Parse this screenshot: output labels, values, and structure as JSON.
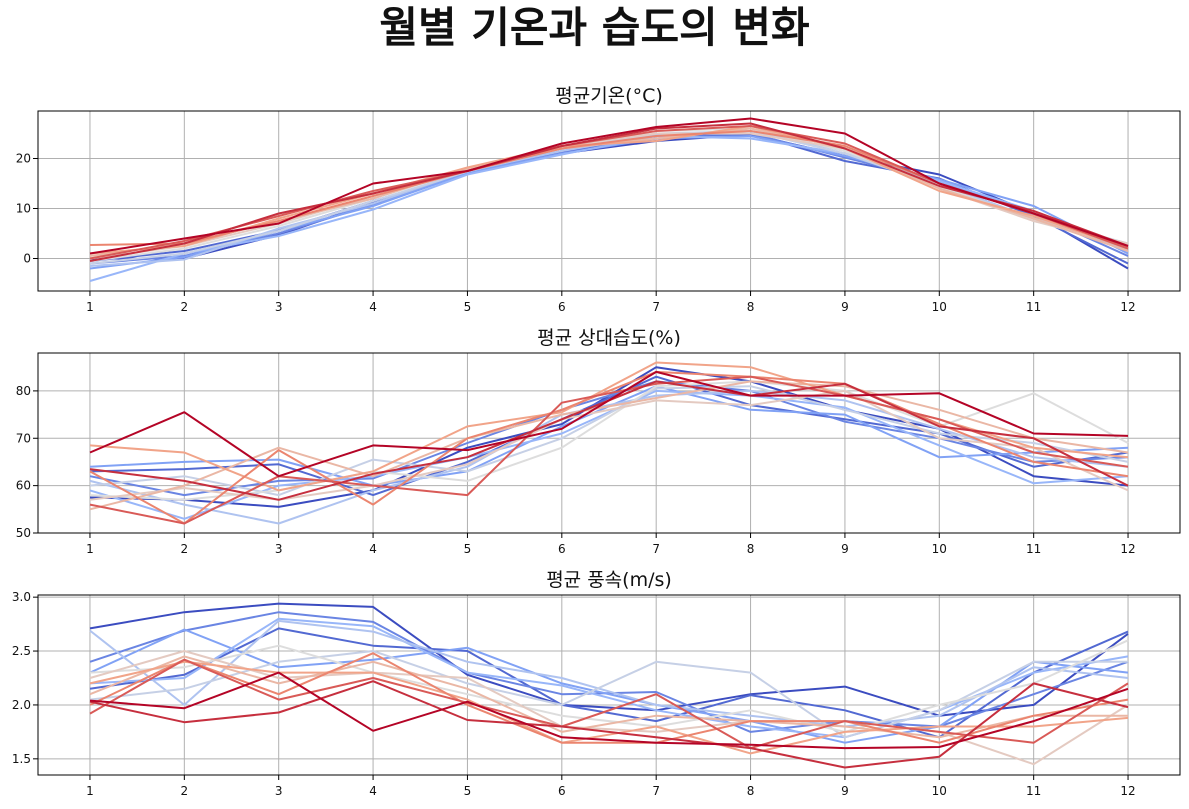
{
  "title": "월별 기온과 습도의 변화",
  "chart_data": [
    {
      "type": "line",
      "title": "평균기온(°C)",
      "x": [
        1,
        2,
        3,
        4,
        5,
        6,
        7,
        8,
        9,
        10,
        11,
        12
      ],
      "xticks": [
        "1",
        "2",
        "3",
        "4",
        "5",
        "6",
        "7",
        "8",
        "9",
        "10",
        "11",
        "12"
      ],
      "ylim": [
        -6.5,
        29.5
      ],
      "yticks": [
        0,
        10,
        20
      ],
      "grid": true,
      "colormap": "coolwarm",
      "series": [
        {
          "values": [
            0.0,
            0.0,
            4.7,
            11.2,
            17.0,
            21.0,
            23.5,
            24.8,
            20.5,
            16.8,
            9.0,
            -2.0
          ]
        },
        {
          "values": [
            -0.5,
            1.5,
            5.6,
            11.5,
            17.2,
            21.3,
            24.0,
            25.0,
            19.5,
            16.0,
            8.5,
            -1.0
          ]
        },
        {
          "values": [
            -1.0,
            0.5,
            5.0,
            10.8,
            17.3,
            21.5,
            24.5,
            25.0,
            20.2,
            15.5,
            9.0,
            0.5
          ]
        },
        {
          "values": [
            -2.0,
            0.3,
            5.5,
            10.5,
            17.1,
            21.0,
            24.0,
            24.5,
            20.5,
            15.8,
            10.5,
            1.0
          ]
        },
        {
          "values": [
            -4.5,
            1.0,
            4.5,
            9.8,
            16.8,
            20.8,
            24.5,
            24.0,
            21.0,
            15.5,
            9.5,
            1.5
          ]
        },
        {
          "values": [
            -1.5,
            -0.2,
            6.0,
            11.0,
            17.5,
            21.5,
            24.8,
            25.5,
            21.5,
            15.0,
            8.0,
            2.0
          ]
        },
        {
          "values": [
            -1.0,
            1.0,
            5.5,
            11.5,
            17.4,
            22.0,
            25.0,
            25.5,
            21.0,
            14.5,
            8.0,
            3.0
          ]
        },
        {
          "values": [
            -0.5,
            2.0,
            6.5,
            12.0,
            17.8,
            22.0,
            25.5,
            26.0,
            21.5,
            14.5,
            7.5,
            2.5
          ]
        },
        {
          "values": [
            0.0,
            2.5,
            7.0,
            12.5,
            17.9,
            22.5,
            25.0,
            25.0,
            22.0,
            14.0,
            7.5,
            3.0
          ]
        },
        {
          "values": [
            0.5,
            3.0,
            7.5,
            12.0,
            18.0,
            22.0,
            24.0,
            26.0,
            22.5,
            14.0,
            8.0,
            1.5
          ]
        },
        {
          "values": [
            1.0,
            2.5,
            8.0,
            13.0,
            18.2,
            22.5,
            23.5,
            26.5,
            22.0,
            13.5,
            8.5,
            2.0
          ]
        },
        {
          "values": [
            2.7,
            3.0,
            7.5,
            12.5,
            17.5,
            22.0,
            24.5,
            25.5,
            22.5,
            15.0,
            9.0,
            2.0
          ]
        },
        {
          "values": [
            0.0,
            3.5,
            8.5,
            13.5,
            17.5,
            22.5,
            25.5,
            26.5,
            23.0,
            15.0,
            9.0,
            2.0
          ]
        },
        {
          "values": [
            -0.5,
            3.0,
            9.0,
            13.0,
            17.5,
            22.5,
            26.0,
            27.0,
            22.0,
            14.5,
            9.5,
            2.5
          ]
        },
        {
          "values": [
            1.0,
            4.0,
            7.0,
            15.0,
            17.5,
            23.0,
            26.3,
            28.0,
            25.0,
            15.0,
            9.0,
            2.5
          ]
        }
      ]
    },
    {
      "type": "line",
      "title": "평균 상대습도(%)",
      "x": [
        1,
        2,
        3,
        4,
        5,
        6,
        7,
        8,
        9,
        10,
        11,
        12
      ],
      "xticks": [
        "1",
        "2",
        "3",
        "4",
        "5",
        "6",
        "7",
        "8",
        "9",
        "10",
        "11",
        "12"
      ],
      "ylim": [
        50,
        88
      ],
      "yticks": [
        50,
        60,
        70,
        80
      ],
      "grid": true,
      "colormap": "coolwarm",
      "series": [
        {
          "values": [
            57.5,
            57.0,
            55.5,
            59.0,
            68.0,
            73.0,
            85.0,
            82.0,
            76.0,
            72.0,
            62.0,
            60.0
          ]
        },
        {
          "values": [
            63.0,
            63.5,
            64.5,
            58.0,
            65.0,
            74.0,
            83.0,
            77.0,
            74.0,
            71.0,
            64.0,
            67.0
          ]
        },
        {
          "values": [
            62.0,
            58.0,
            61.0,
            61.5,
            69.0,
            76.0,
            82.0,
            80.0,
            73.5,
            70.0,
            65.0,
            66.0
          ]
        },
        {
          "values": [
            64.0,
            65.0,
            65.5,
            60.0,
            63.0,
            72.5,
            81.0,
            76.0,
            75.0,
            66.0,
            67.0,
            68.0
          ]
        },
        {
          "values": [
            59.0,
            53.0,
            60.0,
            62.0,
            66.0,
            71.0,
            80.0,
            79.0,
            76.5,
            68.5,
            60.5,
            62.0
          ]
        },
        {
          "values": [
            61.0,
            56.0,
            52.0,
            59.0,
            64.0,
            75.0,
            79.0,
            80.0,
            78.0,
            72.0,
            66.0,
            64.0
          ]
        },
        {
          "values": [
            60.0,
            62.0,
            58.0,
            65.5,
            63.0,
            70.0,
            80.5,
            81.0,
            76.0,
            71.0,
            69.0,
            65.0
          ]
        },
        {
          "values": [
            58.0,
            57.0,
            59.0,
            63.0,
            61.0,
            68.0,
            81.0,
            82.0,
            80.0,
            72.5,
            79.5,
            69.0
          ]
        },
        {
          "values": [
            57.0,
            59.5,
            57.0,
            60.0,
            64.5,
            74.0,
            78.0,
            77.0,
            80.0,
            70.0,
            68.0,
            59.0
          ]
        },
        {
          "values": [
            55.0,
            60.0,
            68.0,
            62.0,
            70.0,
            75.0,
            78.5,
            82.0,
            81.0,
            76.0,
            70.0,
            67.0
          ]
        },
        {
          "values": [
            68.5,
            67.0,
            59.0,
            63.0,
            72.5,
            75.5,
            86.0,
            85.0,
            79.0,
            74.0,
            68.0,
            66.0
          ]
        },
        {
          "values": [
            63.0,
            52.0,
            67.5,
            56.0,
            70.0,
            76.0,
            84.0,
            83.0,
            81.5,
            73.0,
            65.0,
            62.0
          ]
        },
        {
          "values": [
            56.0,
            52.0,
            62.0,
            60.0,
            58.0,
            77.5,
            81.5,
            83.0,
            79.0,
            74.0,
            67.0,
            64.0
          ]
        },
        {
          "values": [
            63.5,
            61.0,
            57.0,
            62.5,
            66.0,
            74.0,
            82.0,
            79.0,
            81.5,
            72.5,
            70.0,
            60.0
          ]
        },
        {
          "values": [
            67.0,
            75.5,
            62.0,
            68.5,
            67.5,
            72.0,
            84.0,
            79.0,
            79.0,
            79.5,
            71.0,
            70.5
          ]
        }
      ]
    },
    {
      "type": "line",
      "title": "평균 풍속(m/s)",
      "x": [
        1,
        2,
        3,
        4,
        5,
        6,
        7,
        8,
        9,
        10,
        11,
        12
      ],
      "xticks": [
        "1",
        "2",
        "3",
        "4",
        "5",
        "6",
        "7",
        "8",
        "9",
        "10",
        "11",
        "12"
      ],
      "ylim": [
        1.35,
        3.02
      ],
      "yticks": [
        1.5,
        2.0,
        2.5,
        3.0
      ],
      "grid": true,
      "colormap": "coolwarm",
      "series": [
        {
          "values": [
            2.71,
            2.86,
            2.94,
            2.91,
            2.28,
            2.0,
            1.95,
            2.1,
            2.17,
            1.9,
            2.0,
            2.66
          ]
        },
        {
          "values": [
            2.15,
            2.28,
            2.71,
            2.55,
            2.5,
            2.0,
            1.85,
            2.09,
            1.95,
            1.7,
            2.3,
            2.68
          ]
        },
        {
          "values": [
            2.4,
            2.69,
            2.86,
            2.77,
            2.3,
            2.1,
            2.12,
            1.75,
            1.85,
            1.8,
            2.1,
            2.4
          ]
        },
        {
          "values": [
            2.3,
            2.7,
            2.35,
            2.42,
            2.53,
            2.2,
            2.0,
            1.85,
            1.65,
            1.8,
            2.4,
            2.3
          ]
        },
        {
          "values": [
            2.2,
            2.25,
            2.8,
            2.73,
            2.3,
            2.18,
            1.95,
            1.8,
            1.7,
            1.95,
            2.3,
            2.45
          ]
        },
        {
          "values": [
            2.69,
            2.0,
            2.78,
            2.68,
            2.4,
            2.25,
            2.0,
            1.9,
            1.8,
            1.9,
            2.35,
            2.25
          ]
        },
        {
          "values": [
            2.05,
            2.15,
            2.4,
            2.5,
            2.2,
            2.0,
            2.4,
            2.3,
            1.7,
            1.95,
            2.4,
            2.4
          ]
        },
        {
          "values": [
            2.3,
            2.35,
            2.55,
            2.3,
            2.1,
            1.9,
            1.8,
            1.95,
            1.75,
            2.0,
            2.2,
            2.6
          ]
        },
        {
          "values": [
            2.25,
            2.5,
            2.25,
            2.3,
            2.25,
            1.8,
            1.75,
            1.85,
            1.85,
            1.75,
            1.45,
            2.0
          ]
        },
        {
          "values": [
            2.1,
            2.45,
            2.2,
            2.4,
            2.15,
            1.75,
            1.9,
            1.85,
            1.8,
            1.7,
            1.9,
            1.9
          ]
        },
        {
          "values": [
            2.2,
            2.4,
            2.3,
            2.3,
            2.05,
            1.65,
            1.8,
            1.55,
            1.75,
            1.8,
            1.8,
            1.88
          ]
        },
        {
          "values": [
            2.0,
            2.42,
            2.1,
            2.48,
            2.0,
            1.65,
            1.65,
            1.85,
            1.85,
            1.65,
            1.9,
            2.05
          ]
        },
        {
          "values": [
            1.92,
            2.42,
            2.05,
            2.25,
            2.02,
            1.8,
            2.1,
            1.6,
            1.85,
            1.75,
            1.65,
            2.2
          ]
        },
        {
          "values": [
            2.03,
            1.84,
            1.93,
            2.22,
            1.86,
            1.8,
            1.7,
            1.6,
            1.42,
            1.52,
            2.2,
            1.98
          ]
        },
        {
          "values": [
            2.04,
            1.97,
            2.3,
            1.76,
            2.03,
            1.7,
            1.65,
            1.63,
            1.6,
            1.61,
            1.85,
            2.15
          ]
        }
      ]
    }
  ]
}
